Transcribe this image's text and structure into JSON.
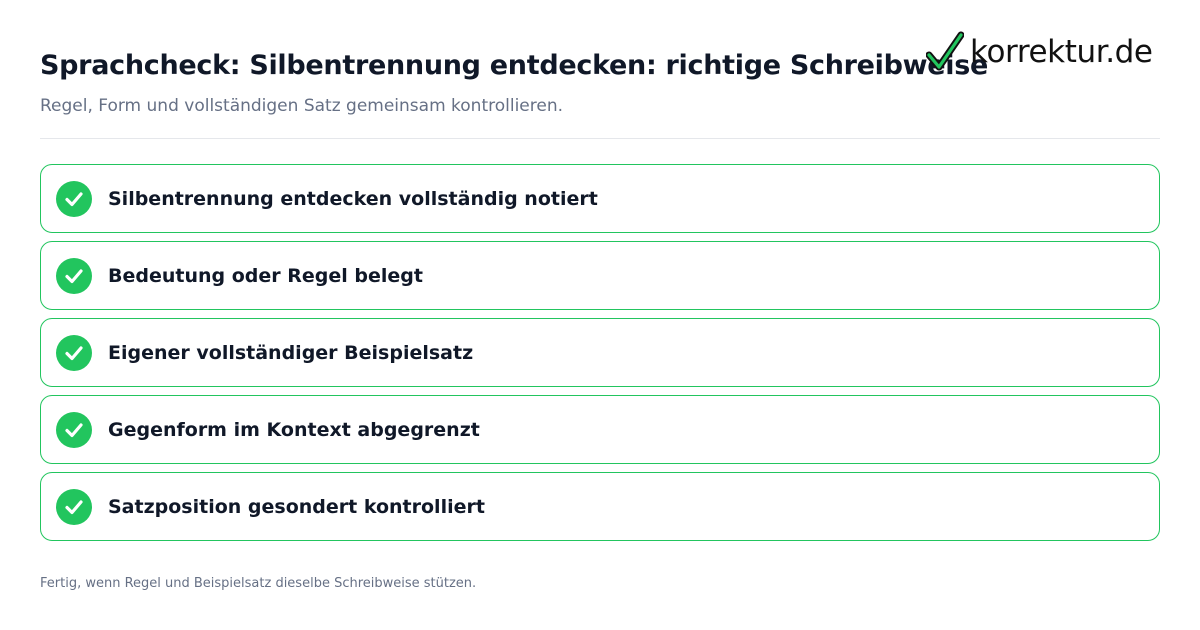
{
  "header": {
    "title": "Sprachcheck: Silbentrennung entdecken: richtige Schreibweise",
    "subtitle": "Regel, Form und vollständigen Satz gemeinsam kontrollieren."
  },
  "logo": {
    "text": "korrektur.de",
    "icon": "checkmark-icon",
    "icon_color": "#22c55e"
  },
  "checklist": {
    "items": [
      {
        "label": "Silbentrennung entdecken vollständig notiert",
        "icon": "check-circle-icon",
        "checked": true
      },
      {
        "label": "Bedeutung oder Regel belegt",
        "icon": "check-circle-icon",
        "checked": true
      },
      {
        "label": "Eigener vollständiger Beispielsatz",
        "icon": "check-circle-icon",
        "checked": true
      },
      {
        "label": "Gegenform im Kontext abgegrenzt",
        "icon": "check-circle-icon",
        "checked": true
      },
      {
        "label": "Satzposition gesondert kontrolliert",
        "icon": "check-circle-icon",
        "checked": true
      }
    ]
  },
  "footer": {
    "note": "Fertig, wenn Regel und Beispielsatz dieselbe Schreibweise stützen."
  },
  "colors": {
    "accent": "#22c55e",
    "title": "#101828",
    "muted": "#667085",
    "divider": "#e5e7eb"
  }
}
